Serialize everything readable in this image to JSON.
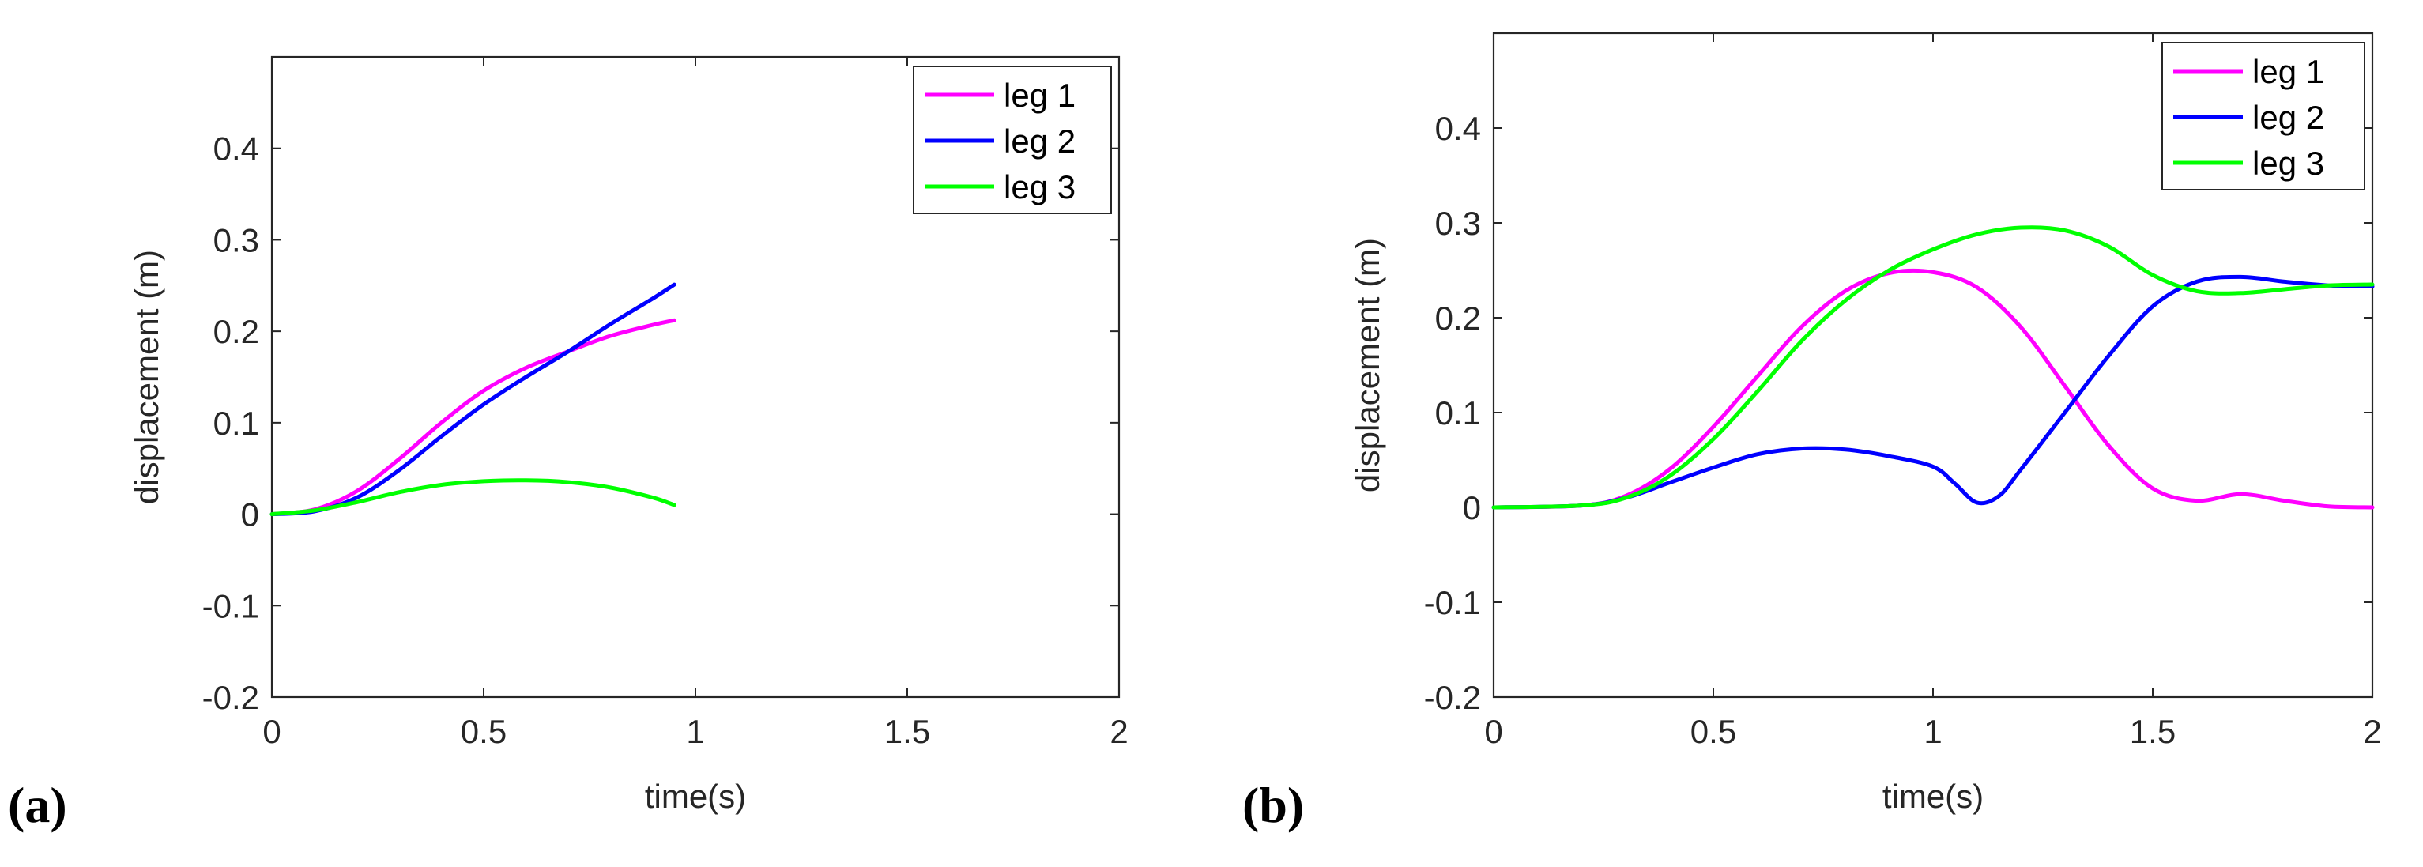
{
  "chart_data": [
    {
      "type": "line",
      "panel_label": "(a)",
      "xlabel": "time(s)",
      "ylabel": "displacement (m)",
      "xlim": [
        0,
        2
      ],
      "ylim": [
        -0.2,
        0.5
      ],
      "xticks": [
        0,
        0.5,
        1,
        1.5,
        2
      ],
      "xtick_labels": [
        "0",
        "0.5",
        "1",
        "1.5",
        "2"
      ],
      "yticks": [
        -0.2,
        -0.1,
        0,
        0.1,
        0.2,
        0.3,
        0.4
      ],
      "ytick_labels": [
        "-0.2",
        "-0.1",
        "0",
        "0.1",
        "0.2",
        "0.3",
        "0.4"
      ],
      "legend_position": "top-right",
      "series": [
        {
          "name": "leg 1",
          "color": "#ff00ff",
          "x": [
            0,
            0.1,
            0.2,
            0.3,
            0.4,
            0.5,
            0.6,
            0.7,
            0.8,
            0.9,
            0.95
          ],
          "y": [
            0,
            0.005,
            0.025,
            0.06,
            0.1,
            0.135,
            0.16,
            0.178,
            0.195,
            0.207,
            0.212
          ]
        },
        {
          "name": "leg 2",
          "color": "#0000ff",
          "x": [
            0,
            0.1,
            0.2,
            0.3,
            0.4,
            0.5,
            0.6,
            0.7,
            0.8,
            0.9,
            0.95
          ],
          "y": [
            0,
            0.003,
            0.018,
            0.048,
            0.085,
            0.12,
            0.15,
            0.178,
            0.208,
            0.236,
            0.251
          ]
        },
        {
          "name": "leg 3",
          "color": "#00ff00",
          "x": [
            0,
            0.1,
            0.2,
            0.3,
            0.4,
            0.5,
            0.6,
            0.7,
            0.8,
            0.9,
            0.95
          ],
          "y": [
            0,
            0.004,
            0.013,
            0.024,
            0.032,
            0.036,
            0.037,
            0.035,
            0.029,
            0.018,
            0.01
          ]
        }
      ]
    },
    {
      "type": "line",
      "panel_label": "(b)",
      "xlabel": "time(s)",
      "ylabel": "displacement (m)",
      "xlim": [
        0,
        2
      ],
      "ylim": [
        -0.2,
        0.5
      ],
      "xticks": [
        0,
        0.5,
        1,
        1.5,
        2
      ],
      "xtick_labels": [
        "0",
        "0.5",
        "1",
        "1.5",
        "2"
      ],
      "yticks": [
        -0.2,
        -0.1,
        0,
        0.1,
        0.2,
        0.3,
        0.4
      ],
      "ytick_labels": [
        "-0.2",
        "-0.1",
        "0",
        "0.1",
        "0.2",
        "0.3",
        "0.4"
      ],
      "legend_position": "top-right",
      "series": [
        {
          "name": "leg 1",
          "color": "#ff00ff",
          "x": [
            0,
            0.2,
            0.3,
            0.4,
            0.5,
            0.6,
            0.7,
            0.8,
            0.9,
            1.0,
            1.1,
            1.2,
            1.3,
            1.4,
            1.5,
            1.6,
            1.7,
            1.8,
            1.9,
            2.0
          ],
          "y": [
            0,
            0.002,
            0.012,
            0.04,
            0.085,
            0.138,
            0.19,
            0.228,
            0.247,
            0.248,
            0.232,
            0.19,
            0.128,
            0.065,
            0.02,
            0.007,
            0.014,
            0.007,
            0.001,
            0
          ]
        },
        {
          "name": "leg 2",
          "color": "#0000ff",
          "x": [
            0,
            0.2,
            0.3,
            0.4,
            0.5,
            0.6,
            0.7,
            0.8,
            0.9,
            1.0,
            1.05,
            1.1,
            1.15,
            1.2,
            1.3,
            1.4,
            1.5,
            1.6,
            1.7,
            1.8,
            1.9,
            2.0
          ],
          "y": [
            0,
            0.002,
            0.01,
            0.026,
            0.042,
            0.056,
            0.062,
            0.061,
            0.054,
            0.043,
            0.025,
            0.005,
            0.012,
            0.04,
            0.1,
            0.16,
            0.212,
            0.238,
            0.243,
            0.238,
            0.234,
            0.233
          ]
        },
        {
          "name": "leg 3",
          "color": "#00ff00",
          "x": [
            0,
            0.2,
            0.3,
            0.4,
            0.5,
            0.6,
            0.7,
            0.8,
            0.9,
            1.0,
            1.1,
            1.2,
            1.3,
            1.4,
            1.5,
            1.6,
            1.7,
            1.8,
            1.9,
            2.0
          ],
          "y": [
            0,
            0.002,
            0.01,
            0.033,
            0.072,
            0.122,
            0.175,
            0.218,
            0.25,
            0.272,
            0.288,
            0.295,
            0.292,
            0.275,
            0.245,
            0.228,
            0.226,
            0.23,
            0.234,
            0.235
          ]
        }
      ]
    }
  ]
}
